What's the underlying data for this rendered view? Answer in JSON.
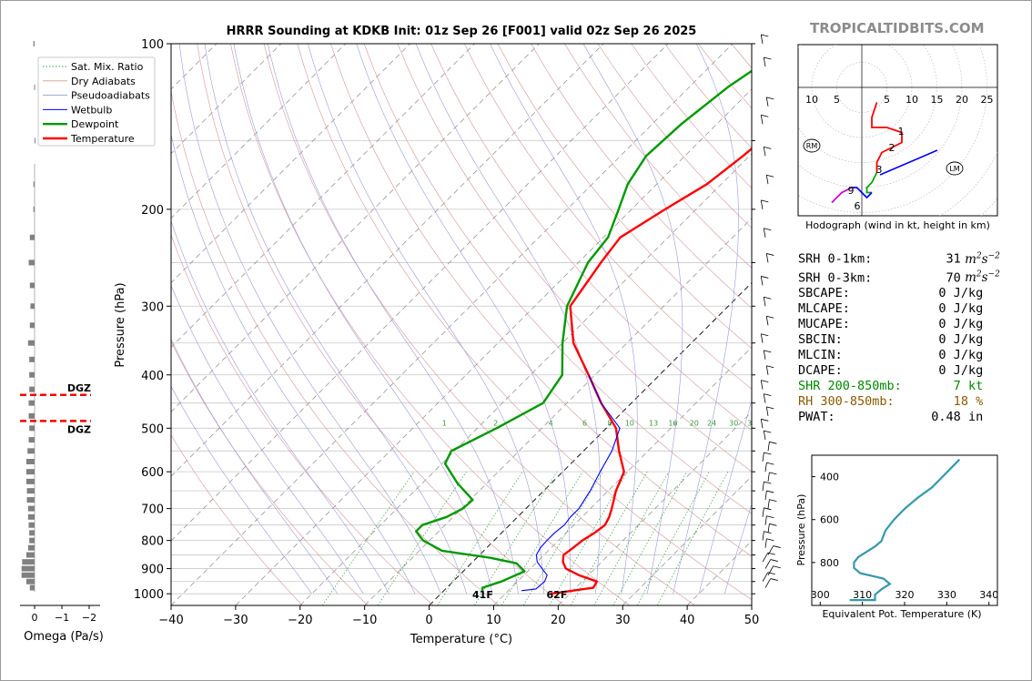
{
  "brand": "TROPICALTIDBITS.COM",
  "chart_data": {
    "type": "line",
    "title": "HRRR Sounding at KDKB Init: 01z Sep 26 [F001] valid 02z Sep 26 2025",
    "xlabel": "Temperature (°C)",
    "ylabel": "Pressure (hPa)",
    "xlim": [
      -40,
      50
    ],
    "ylim": [
      1050,
      100
    ],
    "y_scale": "log",
    "x_ticks": [
      -40,
      -30,
      -20,
      -10,
      0,
      10,
      20,
      30,
      40,
      50
    ],
    "x_tick_labels": [
      "−40",
      "−30",
      "−20",
      "−10",
      "0",
      "10",
      "20",
      "30",
      "40",
      "50"
    ],
    "y_ticks": [
      100,
      200,
      300,
      400,
      500,
      600,
      700,
      800,
      900,
      1000
    ],
    "legend": {
      "placement": "top-left",
      "entries": [
        "Sat. Mix. Ratio",
        "Dry Adiabats",
        "Pseudoadiabats",
        "Wetbulb",
        "Dewpoint",
        "Temperature"
      ]
    },
    "mixing_ratio_labels": [
      "1",
      "2",
      "4",
      "6",
      "8",
      "10",
      "13",
      "16",
      "20",
      "24",
      "30",
      "36"
    ],
    "surface_labels": {
      "dewpoint": "41F",
      "temperature": "62F"
    },
    "series": [
      {
        "name": "Temperature",
        "color": "#ff0000",
        "points": [
          [
            17,
            1000
          ],
          [
            22.7,
            975
          ],
          [
            22.3,
            950
          ],
          [
            18.5,
            925
          ],
          [
            15.5,
            900
          ],
          [
            14,
            875
          ],
          [
            13,
            850
          ],
          [
            13.4,
            825
          ],
          [
            13.7,
            800
          ],
          [
            14.4,
            775
          ],
          [
            14.8,
            750
          ],
          [
            14.2,
            725
          ],
          [
            13.3,
            700
          ],
          [
            11.2,
            650
          ],
          [
            9.5,
            600
          ],
          [
            5.5,
            550
          ],
          [
            1.5,
            500
          ],
          [
            -4.7,
            450
          ],
          [
            -11,
            400
          ],
          [
            -18.3,
            350
          ],
          [
            -24.5,
            300
          ],
          [
            -26.5,
            250
          ],
          [
            -27.4,
            225
          ],
          [
            -24.8,
            200
          ],
          [
            -22.2,
            180
          ],
          [
            -21,
            160
          ],
          [
            -20,
            140
          ],
          [
            -19,
            120
          ],
          [
            -16,
            110
          ],
          [
            -12.5,
            100
          ]
        ]
      },
      {
        "name": "Dewpoint",
        "color": "#009900",
        "points": [
          [
            6,
            987
          ],
          [
            5.5,
            975
          ],
          [
            7.5,
            950
          ],
          [
            9.5,
            910
          ],
          [
            7,
            880
          ],
          [
            2,
            860
          ],
          [
            -6.5,
            835
          ],
          [
            -11,
            800
          ],
          [
            -13.5,
            770
          ],
          [
            -13.5,
            750
          ],
          [
            -11,
            725
          ],
          [
            -9.8,
            700
          ],
          [
            -9.6,
            675
          ],
          [
            -14.5,
            630
          ],
          [
            -19.5,
            580
          ],
          [
            -20.5,
            550
          ],
          [
            -17,
            500
          ],
          [
            -13.7,
            450
          ],
          [
            -15.1,
            400
          ],
          [
            -20,
            350
          ],
          [
            -25,
            300
          ],
          [
            -28.5,
            250
          ],
          [
            -29.3,
            225
          ],
          [
            -32,
            200
          ],
          [
            -34.5,
            180
          ],
          [
            -36,
            160
          ],
          [
            -35.5,
            140
          ],
          [
            -34,
            120
          ],
          [
            -32.5,
            110
          ],
          [
            -30.5,
            100
          ]
        ]
      },
      {
        "name": "Wetbulb",
        "color": "#0000ff",
        "points": [
          [
            12,
            987
          ],
          [
            14,
            980
          ],
          [
            14.2,
            950
          ],
          [
            13.6,
            925
          ],
          [
            11.8,
            900
          ],
          [
            10,
            875
          ],
          [
            8.8,
            850
          ],
          [
            8.3,
            825
          ],
          [
            8.2,
            800
          ],
          [
            8.2,
            775
          ],
          [
            8.5,
            750
          ],
          [
            8.2,
            725
          ],
          [
            8.2,
            700
          ],
          [
            7.2,
            650
          ],
          [
            5.8,
            600
          ],
          [
            4.4,
            550
          ],
          [
            2.1,
            500
          ],
          [
            -4.7,
            450
          ],
          [
            -11,
            400
          ]
        ]
      }
    ],
    "wind_barbs_side": "right"
  },
  "omega": {
    "xlabel": "Omega (Pa/s)",
    "x_tick_labels": [
      "0",
      "−1",
      "−2"
    ],
    "dgz_label": "DGZ",
    "dgz_bounds_hpa": [
      435,
      485
    ],
    "values": [
      [
        100,
        0.1
      ],
      [
        120,
        0.04
      ],
      [
        150,
        0
      ],
      [
        180,
        0.1
      ],
      [
        200,
        0.1
      ],
      [
        225,
        0.4
      ],
      [
        250,
        0.5
      ],
      [
        275,
        0.4
      ],
      [
        300,
        0.35
      ],
      [
        325,
        0.4
      ],
      [
        350,
        0.55
      ],
      [
        375,
        0.45
      ],
      [
        400,
        0.45
      ],
      [
        425,
        0.45
      ],
      [
        450,
        0.5
      ],
      [
        475,
        0.5
      ],
      [
        500,
        0.45
      ],
      [
        525,
        0.5
      ],
      [
        550,
        0.6
      ],
      [
        575,
        0.7
      ],
      [
        600,
        0.7
      ],
      [
        625,
        0.7
      ],
      [
        650,
        0.65
      ],
      [
        675,
        0.65
      ],
      [
        700,
        0.55
      ],
      [
        725,
        0.55
      ],
      [
        750,
        0.5
      ],
      [
        775,
        0.45
      ],
      [
        800,
        0.45
      ],
      [
        825,
        0.55
      ],
      [
        850,
        0.7
      ],
      [
        875,
        1.05
      ],
      [
        900,
        1.1
      ],
      [
        925,
        1.1
      ],
      [
        950,
        0.7
      ],
      [
        975,
        0.4
      ]
    ]
  },
  "hodograph": {
    "caption": "Hodograph (wind in kt, height in km)",
    "ring_labels": [
      "10",
      "5",
      "5",
      "10",
      "15",
      "20",
      "25"
    ],
    "height_labels": [
      "1",
      "2",
      "3",
      "6",
      "9"
    ],
    "rm_label": "RM",
    "lm_label": "LM"
  },
  "indices": [
    {
      "label": "SRH 0-1km:",
      "value": "31",
      "unit": "m2s-2",
      "color": "#000000"
    },
    {
      "label": "SRH 0-3km:",
      "value": "70",
      "unit": "m2s-2",
      "color": "#000000"
    },
    {
      "label": "SBCAPE:",
      "value": "0 J/kg",
      "color": "#000000"
    },
    {
      "label": "MLCAPE:",
      "value": "0 J/kg",
      "color": "#000000"
    },
    {
      "label": "MUCAPE:",
      "value": "0 J/kg",
      "color": "#000000"
    },
    {
      "label": "SBCIN:",
      "value": "0 J/kg",
      "color": "#000000"
    },
    {
      "label": "MLCIN:",
      "value": "0 J/kg",
      "color": "#000000"
    },
    {
      "label": "DCAPE:",
      "value": "0 J/kg",
      "color": "#000000"
    },
    {
      "label": "SHR 200-850mb:",
      "value": "7 kt",
      "color": "#008800"
    },
    {
      "label": "RH 300-850mb:",
      "value": "18 %",
      "color": "#8b5a00"
    },
    {
      "label": "PWAT:",
      "value": "0.48 in",
      "color": "#000000"
    }
  ],
  "theta_e": {
    "xlabel": "Equivalent Pot. Temperature (K)",
    "ylabel": "Pressure (hPa)",
    "xlim": [
      298,
      342
    ],
    "ylim": [
      1000,
      300
    ],
    "x_tick_labels": [
      "300",
      "310",
      "320",
      "330",
      "340"
    ],
    "y_tick_labels": [
      "400",
      "600",
      "800"
    ],
    "color": "#3399aa",
    "points": [
      [
        307,
        975
      ],
      [
        313,
        975
      ],
      [
        313,
        950
      ],
      [
        314.5,
        925
      ],
      [
        316.5,
        900
      ],
      [
        315,
        875
      ],
      [
        309.5,
        850
      ],
      [
        308,
        825
      ],
      [
        308,
        800
      ],
      [
        309,
        775
      ],
      [
        311,
        750
      ],
      [
        313,
        725
      ],
      [
        314.5,
        700
      ],
      [
        315.5,
        650
      ],
      [
        317.5,
        600
      ],
      [
        320,
        550
      ],
      [
        323,
        500
      ],
      [
        326.5,
        450
      ],
      [
        329,
        400
      ],
      [
        331.5,
        350
      ],
      [
        333,
        320
      ]
    ]
  }
}
